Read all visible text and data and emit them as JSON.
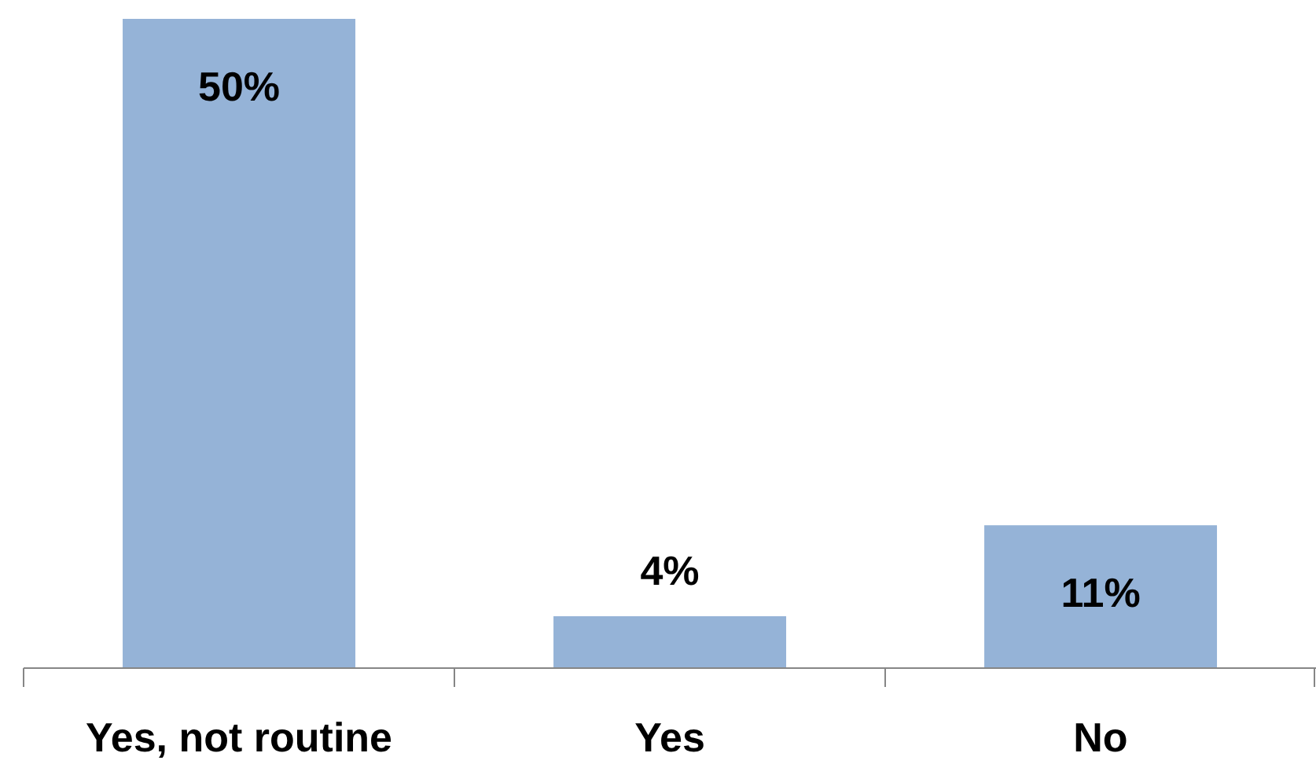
{
  "chart_data": {
    "type": "bar",
    "categories": [
      "Yes, not routine",
      "Yes",
      "No"
    ],
    "values": [
      50,
      4,
      11
    ],
    "color": "#95b3d7",
    "value_labels": [
      "50%",
      "4%",
      "11%"
    ],
    "tick_labels": "x"
  }
}
